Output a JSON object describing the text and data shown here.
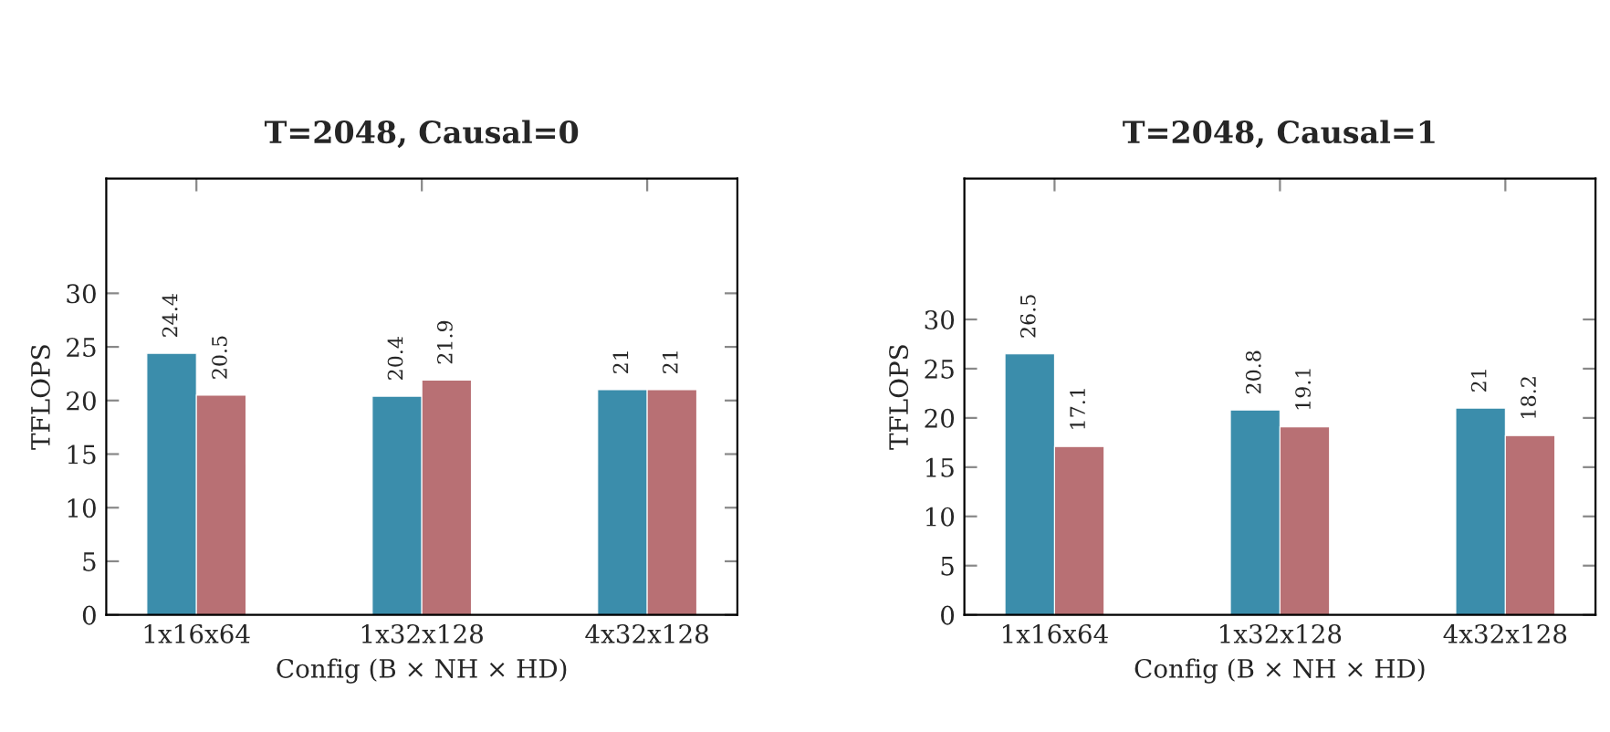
{
  "chart_data": [
    {
      "type": "bar",
      "title": "T=2048, Causal=0",
      "xlabel": "Config (B × NH × HD)",
      "ylabel": "TFLOPS",
      "categories": [
        "1x16x64",
        "1x32x128",
        "4x32x128"
      ],
      "series": [
        {
          "color": "#3b8dab",
          "values": [
            24.4,
            20.4,
            21
          ]
        },
        {
          "color": "#b87074",
          "values": [
            20.5,
            21.9,
            21
          ]
        }
      ],
      "ylim": [
        0,
        40.7
      ],
      "yticks": [
        0,
        5,
        10,
        15,
        20,
        25,
        30
      ],
      "grid": false,
      "legend": false,
      "data_labels": true
    },
    {
      "type": "bar",
      "title": "T=2048, Causal=1",
      "xlabel": "Config (B × NH × HD)",
      "ylabel": "TFLOPS",
      "categories": [
        "1x16x64",
        "1x32x128",
        "4x32x128"
      ],
      "series": [
        {
          "color": "#3b8dab",
          "values": [
            26.5,
            20.8,
            21
          ]
        },
        {
          "color": "#b87074",
          "values": [
            17.1,
            19.1,
            18.2
          ]
        }
      ],
      "ylim": [
        0,
        44.3
      ],
      "yticks": [
        0,
        5,
        10,
        15,
        20,
        25,
        30
      ],
      "grid": false,
      "legend": false,
      "data_labels": true
    }
  ]
}
